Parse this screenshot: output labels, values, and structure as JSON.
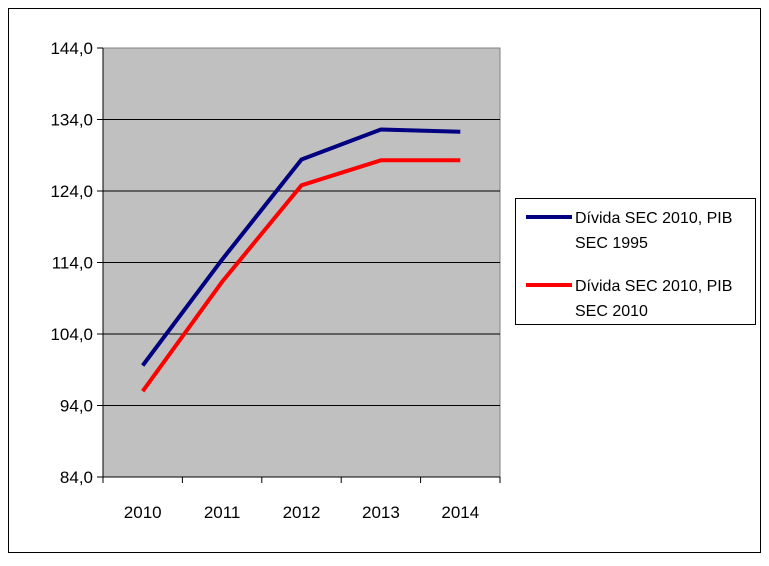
{
  "chart_data": {
    "type": "line",
    "title": "",
    "xlabel": "",
    "ylabel": "",
    "categories": [
      "2010",
      "2011",
      "2012",
      "2013",
      "2014"
    ],
    "ylim": [
      84,
      144
    ],
    "yticks": [
      84,
      94,
      104,
      114,
      124,
      134,
      144
    ],
    "ytick_labels": [
      "84,0",
      "94,0",
      "104,0",
      "114,0",
      "124,0",
      "134,0",
      "144,0"
    ],
    "grid": "horizontal",
    "legend_position": "right",
    "plot_background": "#c0c0c0",
    "series": [
      {
        "name": "Dívida SEC 2010, PIB SEC 1995",
        "legend_lines": [
          "Dívida SEC 2010, PIB",
          "SEC 1995"
        ],
        "color": "#000080",
        "values": [
          99.6,
          114.4,
          128.4,
          132.6,
          132.3
        ]
      },
      {
        "name": "Dívida SEC 2010, PIB SEC 2010",
        "legend_lines": [
          "Dívida SEC 2010, PIB",
          "SEC 2010"
        ],
        "color": "#ff0000",
        "values": [
          96.0,
          111.3,
          124.8,
          128.3,
          128.3
        ]
      }
    ]
  }
}
